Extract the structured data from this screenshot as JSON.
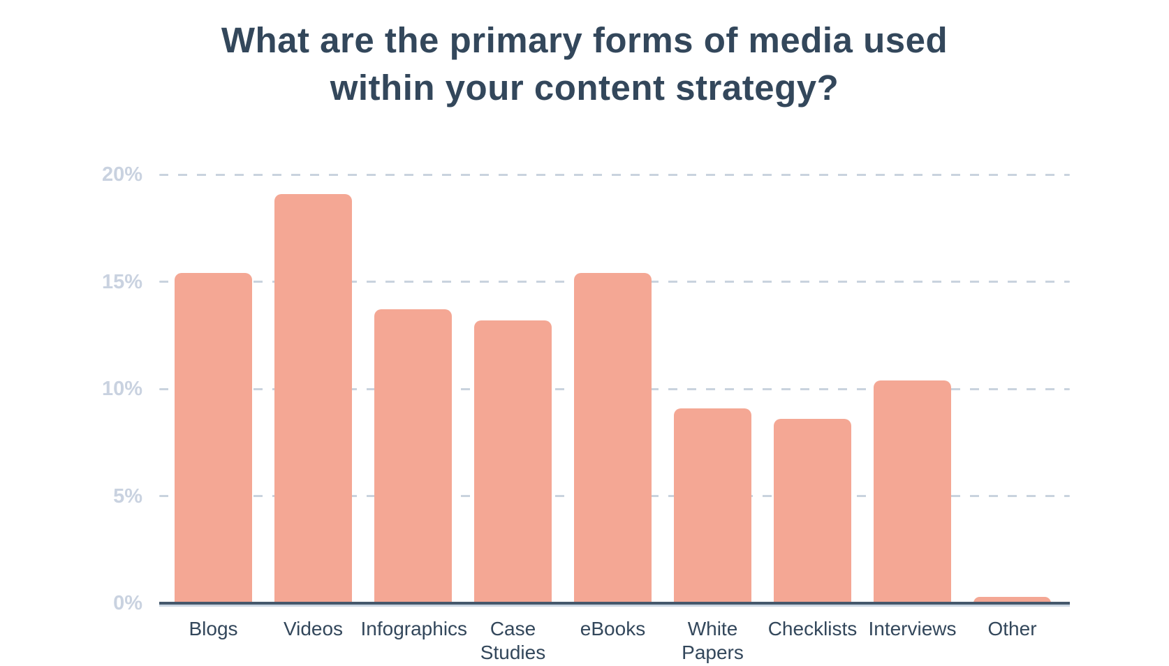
{
  "chart_data": {
    "type": "bar",
    "title": "What are the primary forms of media used within your content strategy?",
    "categories": [
      "Blogs",
      "Videos",
      "Infographics",
      "Case Studies",
      "eBooks",
      "White Papers",
      "Checklists",
      "Interviews",
      "Other"
    ],
    "values": [
      15.4,
      19.1,
      13.7,
      13.2,
      15.4,
      9.1,
      8.6,
      10.4,
      0.3
    ],
    "unit": "%",
    "xlabel": "",
    "ylabel": "",
    "ylim": [
      0,
      20
    ],
    "y_ticks": [
      {
        "value": 0,
        "label": "0%"
      },
      {
        "value": 5,
        "label": "5%"
      },
      {
        "value": 10,
        "label": "10%"
      },
      {
        "value": 15,
        "label": "15%"
      },
      {
        "value": 20,
        "label": "20%"
      }
    ],
    "grid": "horizontal-dashed",
    "legend": "none",
    "colors": {
      "bar": "#f4a794",
      "title": "#33475b",
      "category_label": "#33475b",
      "y_tick_label": "#c9d2e0",
      "gridline": "#c9d3de",
      "axis_line": "#45586c",
      "axis_line_shadow": "#ccd7e3",
      "background": "#ffffff"
    }
  }
}
